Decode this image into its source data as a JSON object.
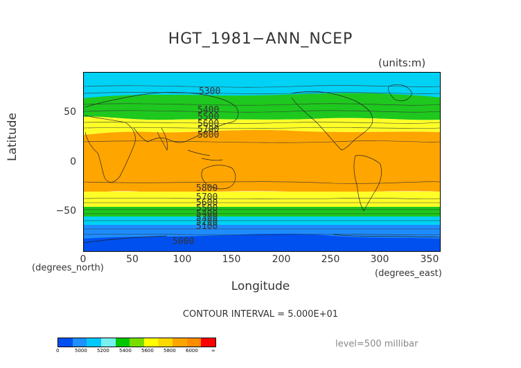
{
  "title": "HGT_1981−ANN_NCEP",
  "units": "(units:m)",
  "y_axis": {
    "label": "Latitude",
    "ticks": [
      "50",
      "0",
      "−50"
    ]
  },
  "x_axis": {
    "label": "Longitude",
    "ticks": [
      "0",
      "50",
      "100",
      "150",
      "200",
      "250",
      "300",
      "350"
    ],
    "unit_left": "(degrees_north)",
    "unit_right": "(degrees_east)"
  },
  "contour_interval": "CONTOUR INTERVAL = 5.000E+01",
  "level": "level=500 millibar",
  "contour_labels": [
    "5300",
    "5400",
    "5500",
    "5600",
    "5700",
    "5800",
    "5800",
    "5700",
    "5600",
    "5500",
    "5400",
    "5300",
    "5200",
    "5100",
    "5000"
  ],
  "colorbar": {
    "colors": [
      "#0050f0",
      "#1e90ff",
      "#00c8ff",
      "#78f0f0",
      "#00c800",
      "#78dc00",
      "#ffff00",
      "#ffd800",
      "#ffa500",
      "#ff8c00",
      "#ff0000"
    ],
    "labels": [
      "0",
      "5000",
      "5200",
      "5400",
      "5600",
      "5800",
      "6000",
      "∞"
    ]
  },
  "bands": [
    {
      "name": "cyan-north",
      "color": "#00d2f5"
    },
    {
      "name": "green-north",
      "color": "#1ec81e"
    },
    {
      "name": "yellow-north",
      "color": "#ffff28"
    },
    {
      "name": "orange-tropics",
      "color": "#ffa500"
    },
    {
      "name": "yellow-south",
      "color": "#ffff28"
    },
    {
      "name": "green-south",
      "color": "#1ec81e"
    },
    {
      "name": "cyan-south",
      "color": "#00d2f5"
    },
    {
      "name": "blue-south",
      "color": "#1e8cff"
    },
    {
      "name": "darkblue-south",
      "color": "#0050f0"
    }
  ]
}
